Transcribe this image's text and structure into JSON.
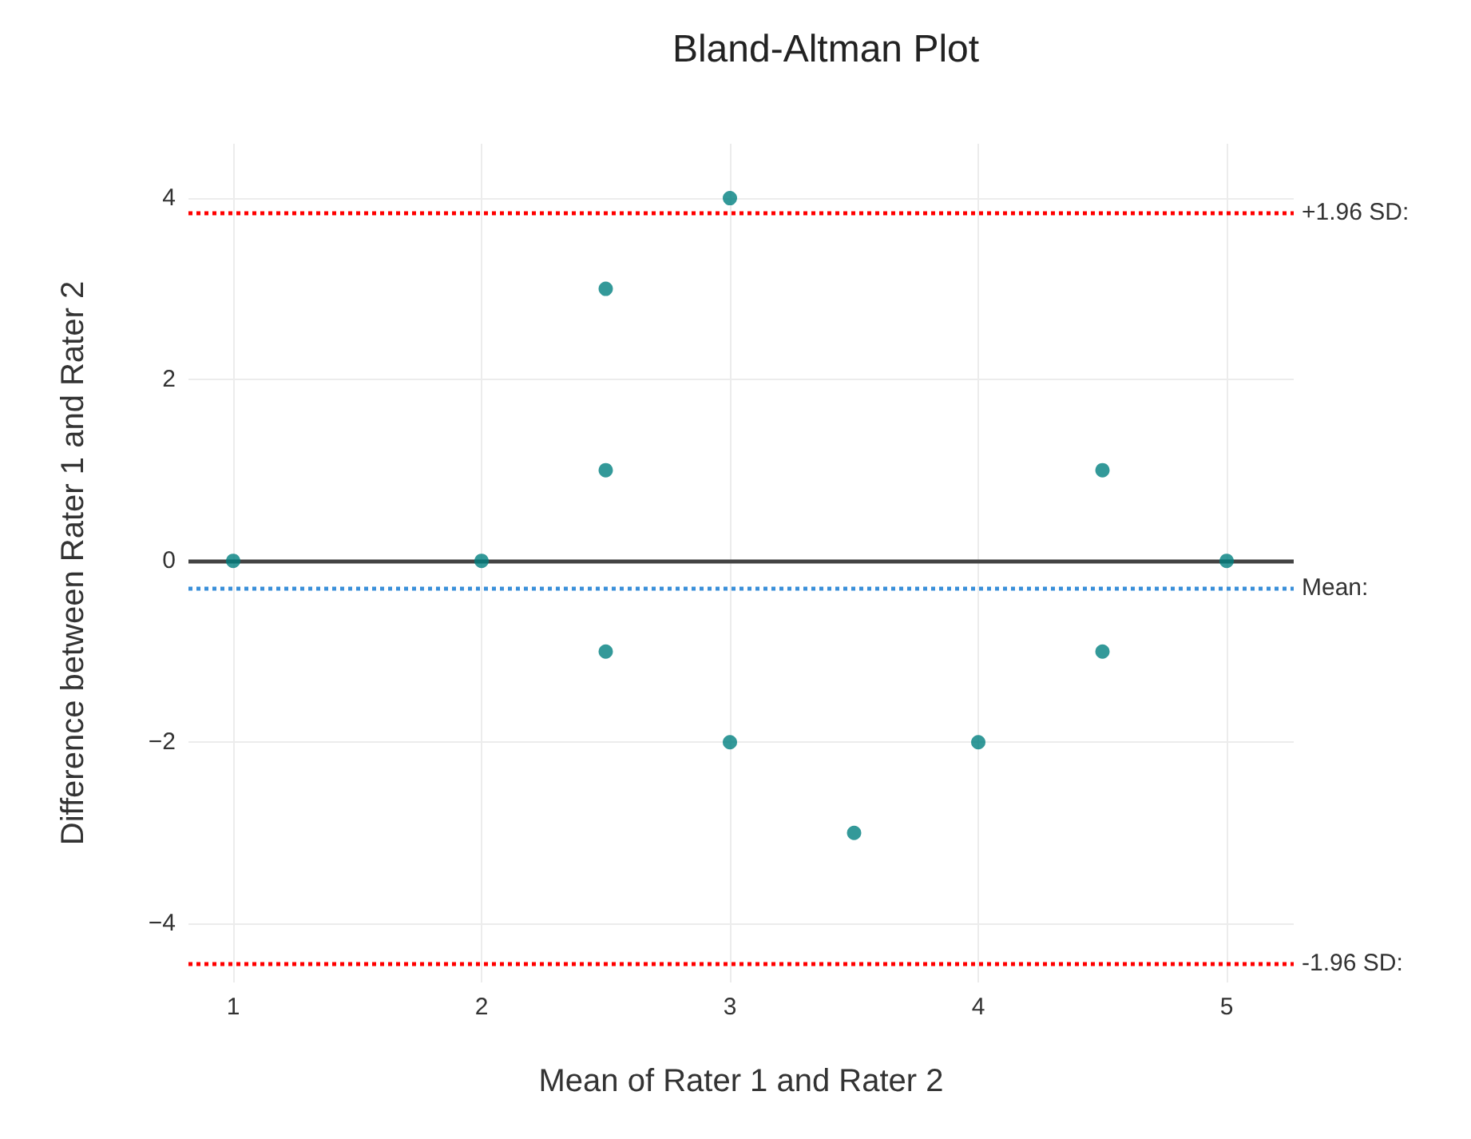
{
  "chart_data": {
    "type": "scatter",
    "title": "Bland-Altman Plot",
    "xlabel": "Mean of Rater 1 and Rater 2",
    "ylabel": "Difference between Rater 1 and Rater 2",
    "x": [
      1,
      2,
      2.5,
      2.5,
      2.5,
      3,
      3,
      3.5,
      4,
      4.5,
      4.5,
      5
    ],
    "series": [
      {
        "color": "#008080",
        "values": [
          0,
          0,
          3,
          1,
          -1,
          4,
          -2,
          -3,
          -2,
          1,
          -1,
          0
        ]
      }
    ],
    "xlim": [
      0.82,
      5.27
    ],
    "xticks": [
      1,
      2,
      3,
      4,
      5
    ],
    "ylim": [
      -4.65,
      4.6
    ],
    "yticks": [
      -4,
      -2,
      0,
      2,
      4
    ],
    "ref_lines": [
      {
        "axis": "y",
        "value": 0,
        "color": "#444444",
        "line_style": "solid"
      },
      {
        "axis": "y",
        "value": 3.84,
        "label": "+1.96 SD:",
        "color": "#ff0000",
        "line_style": "dotted"
      },
      {
        "axis": "y",
        "value": -0.3,
        "label": "Mean:",
        "color": "#3a8fd9",
        "line_style": "dotted"
      },
      {
        "axis": "y",
        "value": -4.44,
        "label": "-1.96 SD:",
        "color": "#ff0000",
        "line_style": "dotted"
      }
    ],
    "grid": true,
    "marker": "circle"
  }
}
